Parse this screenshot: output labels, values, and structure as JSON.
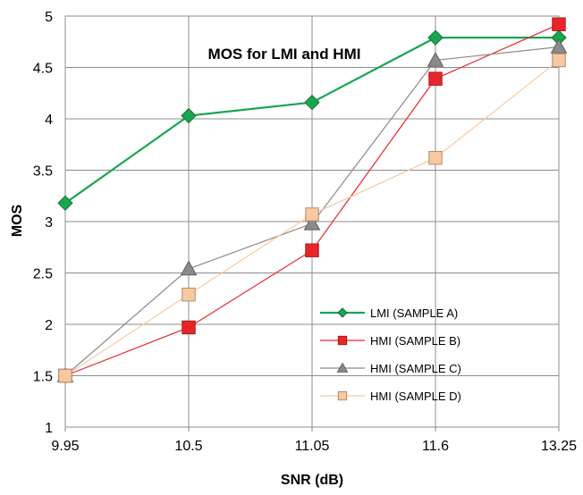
{
  "chart_data": {
    "type": "line",
    "title": "MOS for LMI and HMI",
    "xlabel": "SNR (dB)",
    "ylabel": "MOS",
    "categories": [
      "9.95",
      "10.5",
      "11.05",
      "11.6",
      "13.25"
    ],
    "ylim": [
      1,
      5
    ],
    "yticks": [
      "1",
      "1.5",
      "2",
      "2.5",
      "3",
      "3.5",
      "4",
      "4.5",
      "5"
    ],
    "grid": true,
    "legend_position": "bottom-right",
    "series": [
      {
        "name": "LMI (SAMPLE A)",
        "color": "#1aa550",
        "marker": "diamond",
        "values": [
          3.18,
          4.03,
          4.16,
          4.79,
          4.79
        ]
      },
      {
        "name": "HMI (SAMPLE B)",
        "color": "#e8262a",
        "marker": "square",
        "values": [
          1.5,
          1.97,
          2.72,
          4.39,
          4.92
        ]
      },
      {
        "name": "HMI (SAMPLE C)",
        "color": "#8a8a8a",
        "marker": "triangle",
        "values": [
          1.5,
          2.54,
          2.98,
          4.57,
          4.7
        ]
      },
      {
        "name": "HMI (SAMPLE D)",
        "color": "#f8c9a0",
        "marker": "square",
        "values": [
          1.5,
          2.29,
          3.07,
          3.62,
          4.57
        ]
      }
    ]
  }
}
